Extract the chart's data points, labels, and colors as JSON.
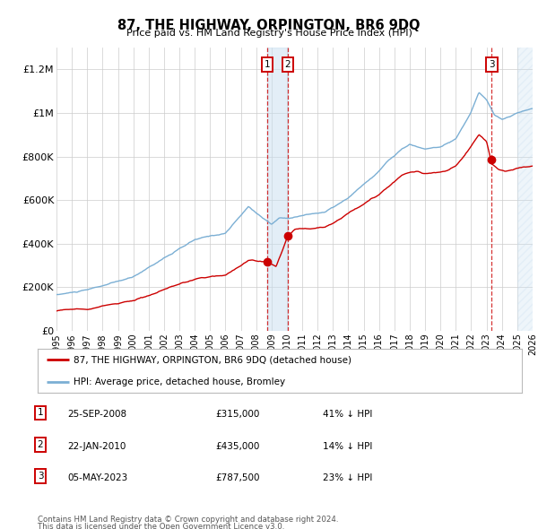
{
  "title": "87, THE HIGHWAY, ORPINGTON, BR6 9DQ",
  "subtitle": "Price paid vs. HM Land Registry's House Price Index (HPI)",
  "ylim": [
    0,
    1300000
  ],
  "yticks": [
    0,
    200000,
    400000,
    600000,
    800000,
    1000000,
    1200000
  ],
  "ytick_labels": [
    "£0",
    "£200K",
    "£400K",
    "£600K",
    "£800K",
    "£1M",
    "£1.2M"
  ],
  "hpi_color": "#7bafd4",
  "price_color": "#cc0000",
  "bg_color": "#ffffff",
  "grid_color": "#cccccc",
  "legend_line1": "87, THE HIGHWAY, ORPINGTON, BR6 9DQ (detached house)",
  "legend_line2": "HPI: Average price, detached house, Bromley",
  "transactions": [
    {
      "label": "1",
      "date": "25-SEP-2008",
      "price": 315000,
      "note": "41% ↓ HPI",
      "x_year": 2008.73
    },
    {
      "label": "2",
      "date": "22-JAN-2010",
      "price": 435000,
      "note": "14% ↓ HPI",
      "x_year": 2010.05
    },
    {
      "label": "3",
      "date": "05-MAY-2023",
      "price": 787500,
      "note": "23% ↓ HPI",
      "x_year": 2023.34
    }
  ],
  "footnote1": "Contains HM Land Registry data © Crown copyright and database right 2024.",
  "footnote2": "This data is licensed under the Open Government Licence v3.0.",
  "xmin": 1995,
  "xmax": 2026,
  "shade_span": [
    2008.73,
    2010.05
  ],
  "hatch_span": [
    2025.0,
    2026.0
  ]
}
